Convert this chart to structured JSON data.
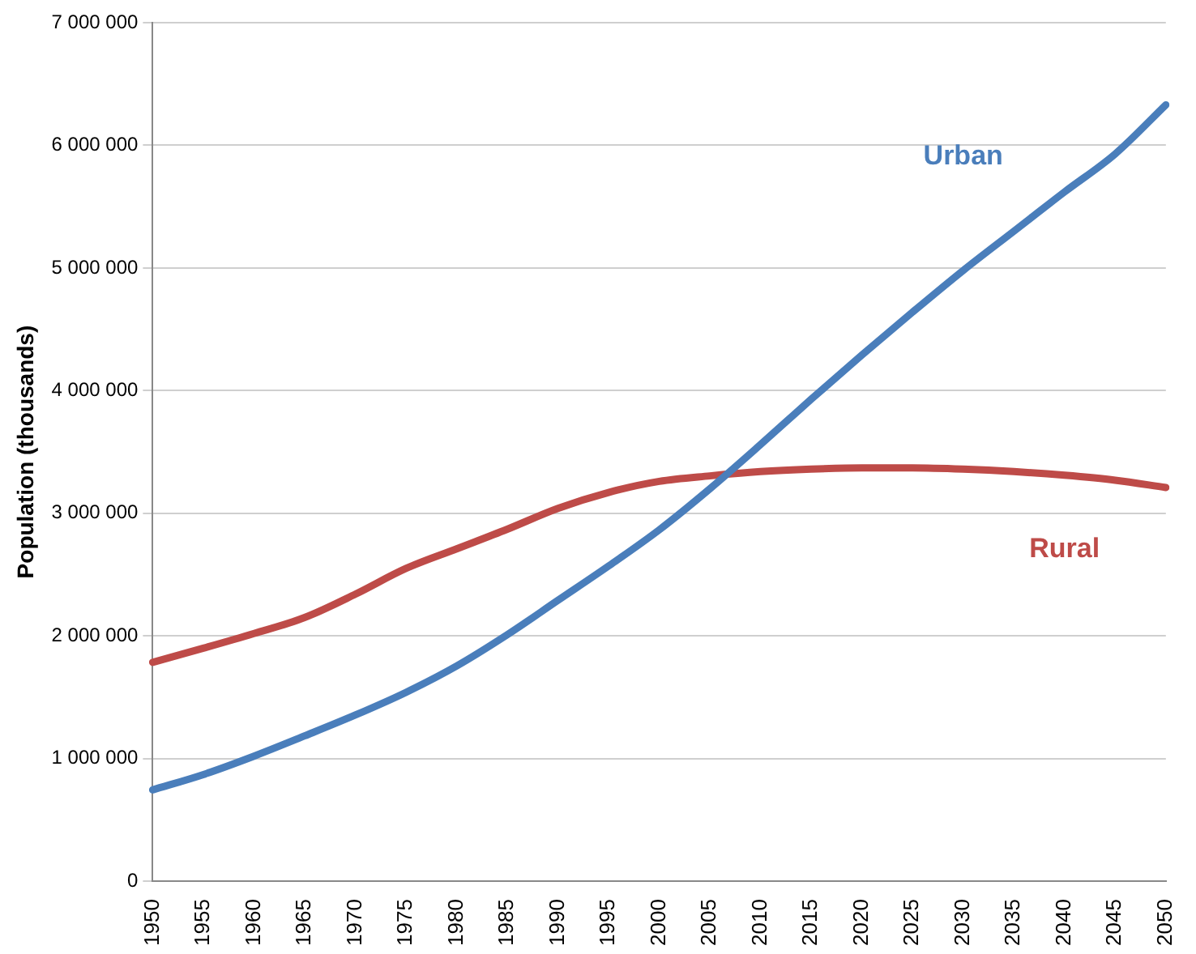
{
  "chart_data": {
    "type": "line",
    "ylabel": "Population (thousands)",
    "categories": [
      "1950",
      "1955",
      "1960",
      "1965",
      "1970",
      "1975",
      "1980",
      "1985",
      "1990",
      "1995",
      "2000",
      "2005",
      "2010",
      "2015",
      "2020",
      "2025",
      "2030",
      "2035",
      "2040",
      "2045",
      "2050"
    ],
    "series": [
      {
        "name": "Urban",
        "color": "#4a7ebb",
        "values": [
          745000,
          870000,
          1020000,
          1185000,
          1355000,
          1540000,
          1755000,
          2010000,
          2290000,
          2570000,
          2865000,
          3200000,
          3560000,
          3930000,
          4290000,
          4640000,
          4980000,
          5300000,
          5620000,
          5930000,
          6330000
        ]
      },
      {
        "name": "Rural",
        "color": "#be4b48",
        "values": [
          1785000,
          1900000,
          2020000,
          2150000,
          2340000,
          2550000,
          2710000,
          2870000,
          3040000,
          3170000,
          3260000,
          3305000,
          3340000,
          3360000,
          3370000,
          3370000,
          3360000,
          3340000,
          3310000,
          3270000,
          3210000
        ]
      }
    ],
    "ylim": [
      0,
      7000000
    ],
    "yticks": [
      {
        "value": 0,
        "label": "0"
      },
      {
        "value": 1000000,
        "label": "1 000 000"
      },
      {
        "value": 2000000,
        "label": "2 000 000"
      },
      {
        "value": 3000000,
        "label": "3 000 000"
      },
      {
        "value": 4000000,
        "label": "4 000 000"
      },
      {
        "value": 5000000,
        "label": "5 000 000"
      },
      {
        "value": 6000000,
        "label": "6 000 000"
      },
      {
        "value": 7000000,
        "label": "7 000 000"
      }
    ],
    "grid": "y",
    "legend": false,
    "marker": "none",
    "line_style": "solid"
  }
}
